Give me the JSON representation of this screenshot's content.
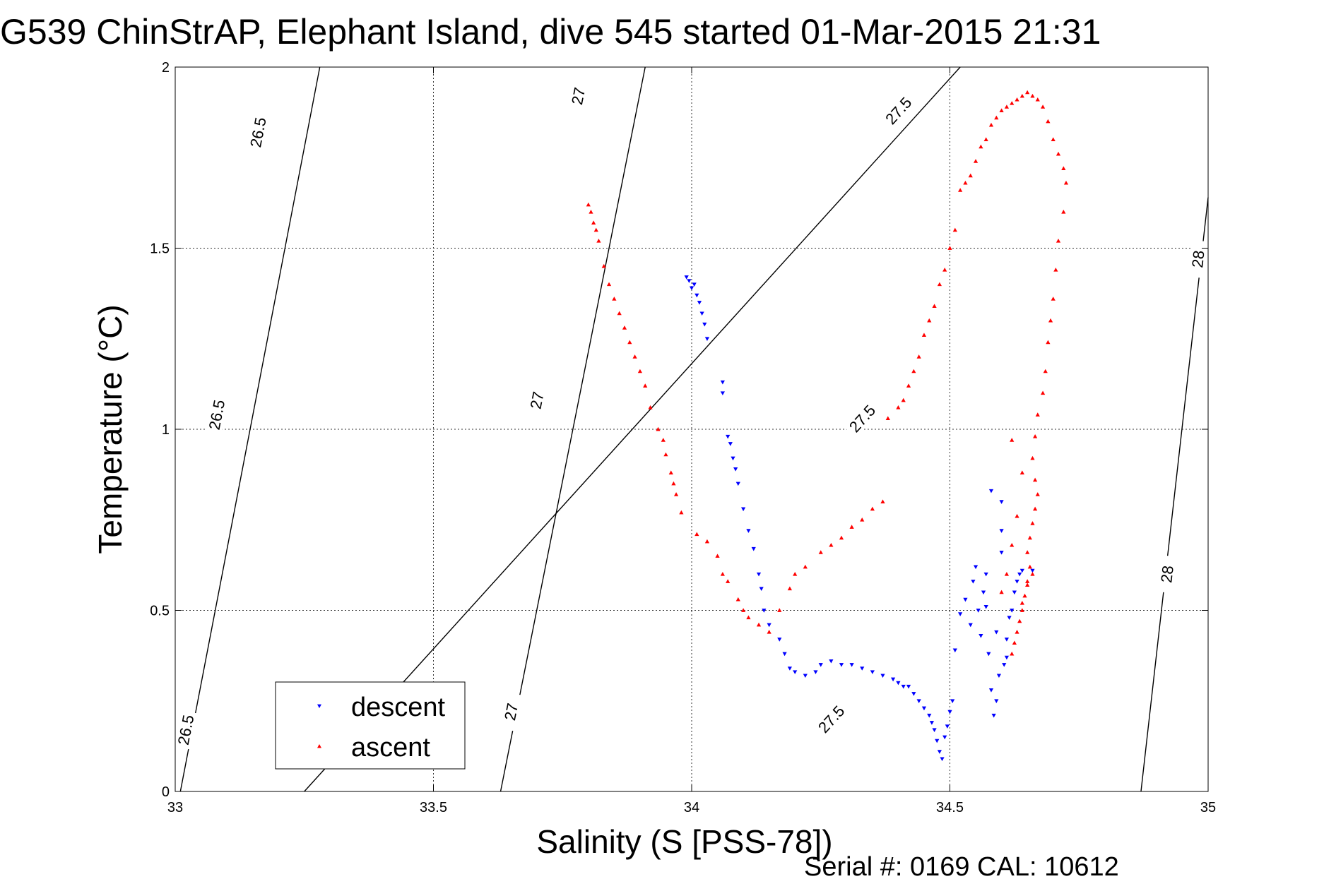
{
  "chart_data": {
    "type": "scatter",
    "title": "G539 ChinStrAP, Elephant Island, dive 545 started 01-Mar-2015 21:31",
    "xlabel": "Salinity (S [PSS-78])",
    "ylabel": "Temperature (°C)",
    "xlim": [
      33,
      35
    ],
    "ylim": [
      0,
      2
    ],
    "xticks": [
      "33",
      "33.5",
      "34",
      "34.5",
      "35"
    ],
    "yticks": [
      "0",
      "0.5",
      "1",
      "1.5",
      "2"
    ],
    "grid": true,
    "legend_position": "bottom-left",
    "colors": {
      "descent": "#0000ff",
      "ascent": "#ff0000",
      "contour": "#000000"
    },
    "isopycnals": [
      {
        "label": "26.5",
        "points": [
          [
            33.01,
            0.0
          ],
          [
            33.28,
            2.0
          ]
        ],
        "label_at": [
          [
            33.02,
            0.17
          ],
          [
            33.08,
            1.04
          ],
          [
            33.16,
            1.82
          ]
        ]
      },
      {
        "label": "27",
        "points": [
          [
            33.63,
            0.0
          ],
          [
            33.91,
            2.0
          ]
        ],
        "label_at": [
          [
            33.65,
            0.22
          ],
          [
            33.7,
            1.08
          ],
          [
            33.78,
            1.92
          ]
        ]
      },
      {
        "label": "27.5",
        "points": [
          [
            33.25,
            0.0
          ],
          [
            34.52,
            2.0
          ]
        ],
        "label_at": [
          [
            34.27,
            0.2
          ],
          [
            34.33,
            1.03
          ],
          [
            34.4,
            1.88
          ]
        ]
      },
      {
        "label": "28",
        "points": [
          [
            34.87,
            0.0
          ],
          [
            35.0,
            1.64
          ]
        ],
        "label_at": [
          [
            34.92,
            0.6
          ],
          [
            34.98,
            1.47
          ]
        ]
      }
    ],
    "series": [
      {
        "name": "descent",
        "marker": "triangle-down",
        "points": [
          [
            33.99,
            1.42
          ],
          [
            33.995,
            1.41
          ],
          [
            34.0,
            1.39
          ],
          [
            34.005,
            1.4
          ],
          [
            34.01,
            1.37
          ],
          [
            34.015,
            1.35
          ],
          [
            34.02,
            1.32
          ],
          [
            34.025,
            1.29
          ],
          [
            34.03,
            1.25
          ],
          [
            34.06,
            1.13
          ],
          [
            34.06,
            1.1
          ],
          [
            34.07,
            0.98
          ],
          [
            34.075,
            0.96
          ],
          [
            34.08,
            0.92
          ],
          [
            34.085,
            0.89
          ],
          [
            34.09,
            0.85
          ],
          [
            34.1,
            0.78
          ],
          [
            34.11,
            0.72
          ],
          [
            34.12,
            0.67
          ],
          [
            34.13,
            0.6
          ],
          [
            34.135,
            0.56
          ],
          [
            34.14,
            0.5
          ],
          [
            34.15,
            0.46
          ],
          [
            34.17,
            0.42
          ],
          [
            34.18,
            0.38
          ],
          [
            34.19,
            0.34
          ],
          [
            34.2,
            0.33
          ],
          [
            34.22,
            0.32
          ],
          [
            34.24,
            0.33
          ],
          [
            34.25,
            0.35
          ],
          [
            34.27,
            0.36
          ],
          [
            34.29,
            0.35
          ],
          [
            34.31,
            0.35
          ],
          [
            34.33,
            0.34
          ],
          [
            34.35,
            0.33
          ],
          [
            34.37,
            0.32
          ],
          [
            34.39,
            0.31
          ],
          [
            34.4,
            0.3
          ],
          [
            34.41,
            0.29
          ],
          [
            34.42,
            0.29
          ],
          [
            34.43,
            0.27
          ],
          [
            34.44,
            0.25
          ],
          [
            34.45,
            0.23
          ],
          [
            34.46,
            0.21
          ],
          [
            34.465,
            0.19
          ],
          [
            34.47,
            0.17
          ],
          [
            34.475,
            0.14
          ],
          [
            34.48,
            0.11
          ],
          [
            34.485,
            0.09
          ],
          [
            34.49,
            0.15
          ],
          [
            34.495,
            0.18
          ],
          [
            34.5,
            0.22
          ],
          [
            34.505,
            0.25
          ],
          [
            34.51,
            0.39
          ],
          [
            34.52,
            0.49
          ],
          [
            34.53,
            0.53
          ],
          [
            34.54,
            0.46
          ],
          [
            34.545,
            0.58
          ],
          [
            34.55,
            0.62
          ],
          [
            34.555,
            0.5
          ],
          [
            34.56,
            0.43
          ],
          [
            34.565,
            0.55
          ],
          [
            34.57,
            0.6
          ],
          [
            34.575,
            0.38
          ],
          [
            34.58,
            0.28
          ],
          [
            34.585,
            0.21
          ],
          [
            34.59,
            0.25
          ],
          [
            34.595,
            0.32
          ],
          [
            34.6,
            0.72
          ],
          [
            34.6,
            0.66
          ],
          [
            34.605,
            0.35
          ],
          [
            34.61,
            0.42
          ],
          [
            34.615,
            0.48
          ],
          [
            34.62,
            0.5
          ],
          [
            34.625,
            0.55
          ],
          [
            34.63,
            0.58
          ],
          [
            34.635,
            0.6
          ],
          [
            34.6,
            0.8
          ],
          [
            34.58,
            0.83
          ],
          [
            34.64,
            0.61
          ],
          [
            34.66,
            0.61
          ],
          [
            34.57,
            0.51
          ],
          [
            34.59,
            0.44
          ],
          [
            34.61,
            0.37
          ]
        ]
      },
      {
        "name": "ascent",
        "marker": "triangle-up",
        "points": [
          [
            33.8,
            1.62
          ],
          [
            33.805,
            1.6
          ],
          [
            33.81,
            1.57
          ],
          [
            33.815,
            1.55
          ],
          [
            33.82,
            1.52
          ],
          [
            33.83,
            1.45
          ],
          [
            33.84,
            1.4
          ],
          [
            33.85,
            1.36
          ],
          [
            33.86,
            1.32
          ],
          [
            33.87,
            1.28
          ],
          [
            33.88,
            1.24
          ],
          [
            33.89,
            1.2
          ],
          [
            33.9,
            1.16
          ],
          [
            33.91,
            1.12
          ],
          [
            33.92,
            1.06
          ],
          [
            33.935,
            1.0
          ],
          [
            33.945,
            0.97
          ],
          [
            33.95,
            0.93
          ],
          [
            33.96,
            0.88
          ],
          [
            33.965,
            0.85
          ],
          [
            33.97,
            0.82
          ],
          [
            33.98,
            0.77
          ],
          [
            34.01,
            0.71
          ],
          [
            34.03,
            0.69
          ],
          [
            34.05,
            0.65
          ],
          [
            34.06,
            0.6
          ],
          [
            34.07,
            0.58
          ],
          [
            34.09,
            0.53
          ],
          [
            34.1,
            0.5
          ],
          [
            34.11,
            0.48
          ],
          [
            34.13,
            0.46
          ],
          [
            34.15,
            0.44
          ],
          [
            34.17,
            0.5
          ],
          [
            34.19,
            0.56
          ],
          [
            34.2,
            0.6
          ],
          [
            34.22,
            0.62
          ],
          [
            34.25,
            0.66
          ],
          [
            34.27,
            0.68
          ],
          [
            34.29,
            0.7
          ],
          [
            34.31,
            0.73
          ],
          [
            34.33,
            0.75
          ],
          [
            34.35,
            0.78
          ],
          [
            34.37,
            0.8
          ],
          [
            34.38,
            1.03
          ],
          [
            34.4,
            1.06
          ],
          [
            34.41,
            1.08
          ],
          [
            34.42,
            1.12
          ],
          [
            34.43,
            1.16
          ],
          [
            34.44,
            1.2
          ],
          [
            34.45,
            1.26
          ],
          [
            34.46,
            1.3
          ],
          [
            34.47,
            1.34
          ],
          [
            34.48,
            1.4
          ],
          [
            34.49,
            1.44
          ],
          [
            34.5,
            1.5
          ],
          [
            34.51,
            1.55
          ],
          [
            34.52,
            1.66
          ],
          [
            34.53,
            1.68
          ],
          [
            34.54,
            1.7
          ],
          [
            34.55,
            1.74
          ],
          [
            34.56,
            1.78
          ],
          [
            34.57,
            1.8
          ],
          [
            34.58,
            1.84
          ],
          [
            34.59,
            1.86
          ],
          [
            34.6,
            1.88
          ],
          [
            34.61,
            1.89
          ],
          [
            34.62,
            1.9
          ],
          [
            34.63,
            1.91
          ],
          [
            34.64,
            1.92
          ],
          [
            34.65,
            1.93
          ],
          [
            34.66,
            1.92
          ],
          [
            34.67,
            1.91
          ],
          [
            34.68,
            1.89
          ],
          [
            34.69,
            1.85
          ],
          [
            34.7,
            1.8
          ],
          [
            34.71,
            1.76
          ],
          [
            34.72,
            1.72
          ],
          [
            34.725,
            1.68
          ],
          [
            34.72,
            1.6
          ],
          [
            34.71,
            1.52
          ],
          [
            34.705,
            1.44
          ],
          [
            34.7,
            1.36
          ],
          [
            34.695,
            1.3
          ],
          [
            34.69,
            1.24
          ],
          [
            34.685,
            1.16
          ],
          [
            34.68,
            1.1
          ],
          [
            34.67,
            1.04
          ],
          [
            34.665,
            0.98
          ],
          [
            34.66,
            0.92
          ],
          [
            34.665,
            0.86
          ],
          [
            34.67,
            0.82
          ],
          [
            34.665,
            0.78
          ],
          [
            34.66,
            0.74
          ],
          [
            34.655,
            0.7
          ],
          [
            34.65,
            0.66
          ],
          [
            34.655,
            0.62
          ],
          [
            34.65,
            0.58
          ],
          [
            34.645,
            0.54
          ],
          [
            34.64,
            0.5
          ],
          [
            34.635,
            0.47
          ],
          [
            34.63,
            0.44
          ],
          [
            34.625,
            0.41
          ],
          [
            34.62,
            0.38
          ],
          [
            34.6,
            0.55
          ],
          [
            34.61,
            0.6
          ],
          [
            34.62,
            0.68
          ],
          [
            34.63,
            0.76
          ],
          [
            34.64,
            0.88
          ],
          [
            34.62,
            0.97
          ],
          [
            34.64,
            0.52
          ],
          [
            34.65,
            0.57
          ],
          [
            34.66,
            0.6
          ]
        ]
      }
    ],
    "legend": [
      {
        "series": "descent",
        "label": "descent"
      },
      {
        "series": "ascent",
        "label": "ascent"
      }
    ],
    "footer": "Serial #: 0169 CAL: 10612"
  }
}
